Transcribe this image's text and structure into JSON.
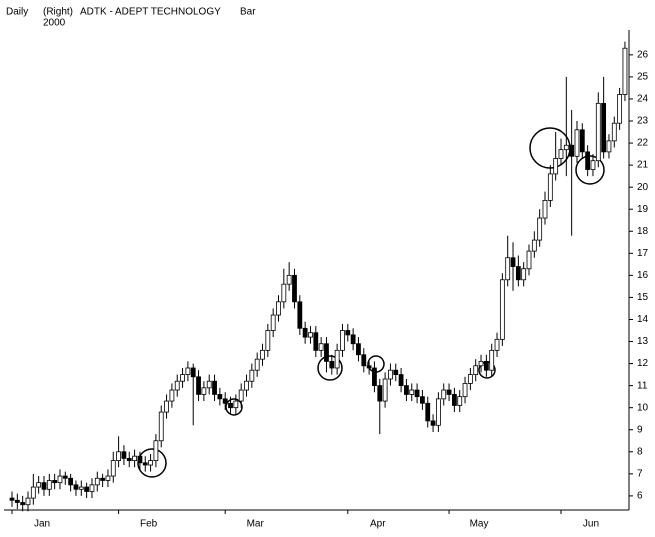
{
  "header": {
    "period": "Daily",
    "axis_side": "(Right)",
    "year": "2000",
    "symbol": "ADTK - ADEPT TECHNOLOGY",
    "style": "Bar"
  },
  "chart_data": {
    "type": "candlestick",
    "ylim": [
      5.36,
      26.9
    ],
    "yticks": [
      6,
      7,
      8,
      9,
      10,
      11,
      12,
      13,
      14,
      15,
      16,
      17,
      18,
      19,
      20,
      21,
      22,
      23,
      24,
      25,
      26
    ],
    "up_color": "#ffffff",
    "down_color": "#000000",
    "categories": [
      "Jan",
      null,
      null,
      null,
      null,
      null,
      null,
      null,
      null,
      null,
      null,
      null,
      null,
      null,
      null,
      null,
      null,
      null,
      null,
      null,
      "Feb",
      null,
      null,
      null,
      null,
      null,
      null,
      null,
      null,
      null,
      null,
      null,
      null,
      null,
      null,
      null,
      null,
      null,
      null,
      null,
      "Mar",
      null,
      null,
      null,
      null,
      null,
      null,
      null,
      null,
      null,
      null,
      null,
      null,
      null,
      null,
      null,
      null,
      null,
      null,
      null,
      null,
      null,
      null,
      "Apr",
      null,
      null,
      null,
      null,
      null,
      null,
      null,
      null,
      null,
      null,
      null,
      null,
      null,
      null,
      null,
      null,
      null,
      null,
      "May",
      null,
      null,
      null,
      null,
      null,
      null,
      null,
      null,
      null,
      null,
      null,
      null,
      null,
      null,
      null,
      null,
      null,
      null,
      null,
      null,
      "Jun",
      null,
      null,
      null,
      null,
      null,
      null,
      null,
      null,
      null,
      null,
      null,
      null
    ],
    "ohlc": [
      [
        5.9,
        6.2,
        5.5,
        5.8
      ],
      [
        5.8,
        6.1,
        5.4,
        5.7
      ],
      [
        5.7,
        6.0,
        5.3,
        5.6
      ],
      [
        5.6,
        6.2,
        5.3,
        5.9
      ],
      [
        5.9,
        7.0,
        5.6,
        6.4
      ],
      [
        6.4,
        6.9,
        6.1,
        6.6
      ],
      [
        6.6,
        6.9,
        6.0,
        6.3
      ],
      [
        6.3,
        7.0,
        6.0,
        6.7
      ],
      [
        6.7,
        7.0,
        6.3,
        6.6
      ],
      [
        6.6,
        7.2,
        6.3,
        6.9
      ],
      [
        6.9,
        7.1,
        6.5,
        6.8
      ],
      [
        6.8,
        7.0,
        6.2,
        6.5
      ],
      [
        6.5,
        6.7,
        6.0,
        6.3
      ],
      [
        6.3,
        6.7,
        6.0,
        6.4
      ],
      [
        6.4,
        6.6,
        5.9,
        6.2
      ],
      [
        6.2,
        6.8,
        5.9,
        6.5
      ],
      [
        6.5,
        7.1,
        6.2,
        6.8
      ],
      [
        6.8,
        7.0,
        6.4,
        6.7
      ],
      [
        6.7,
        7.2,
        6.4,
        6.9
      ],
      [
        6.9,
        8.0,
        6.6,
        7.6
      ],
      [
        7.6,
        8.7,
        7.3,
        8.0
      ],
      [
        8.0,
        8.3,
        7.4,
        7.7
      ],
      [
        7.7,
        8.0,
        7.3,
        7.6
      ],
      [
        7.6,
        8.1,
        7.3,
        7.8
      ],
      [
        7.8,
        8.0,
        7.2,
        7.5
      ],
      [
        7.5,
        7.8,
        7.1,
        7.4
      ],
      [
        7.4,
        7.9,
        7.1,
        7.6
      ],
      [
        7.6,
        8.8,
        7.3,
        8.5
      ],
      [
        8.5,
        10.1,
        8.2,
        9.8
      ],
      [
        9.8,
        10.6,
        9.5,
        10.3
      ],
      [
        10.3,
        11.1,
        10.0,
        10.8
      ],
      [
        10.8,
        11.5,
        10.5,
        11.2
      ],
      [
        11.2,
        11.8,
        10.9,
        11.5
      ],
      [
        11.5,
        12.1,
        11.2,
        11.8
      ],
      [
        11.8,
        12.0,
        9.2,
        11.4
      ],
      [
        11.4,
        11.7,
        10.3,
        10.6
      ],
      [
        10.6,
        11.2,
        10.3,
        10.9
      ],
      [
        10.9,
        11.5,
        10.6,
        11.2
      ],
      [
        11.2,
        11.5,
        10.3,
        10.6
      ],
      [
        10.6,
        10.9,
        10.1,
        10.4
      ],
      [
        10.4,
        10.7,
        9.9,
        10.2
      ],
      [
        10.2,
        10.5,
        9.7,
        10.0
      ],
      [
        10.0,
        10.6,
        9.7,
        10.3
      ],
      [
        10.3,
        11.1,
        10.0,
        10.8
      ],
      [
        10.8,
        11.5,
        10.5,
        11.2
      ],
      [
        11.2,
        12.0,
        10.9,
        11.7
      ],
      [
        11.7,
        12.5,
        11.4,
        12.2
      ],
      [
        12.2,
        12.9,
        11.9,
        12.6
      ],
      [
        12.6,
        13.8,
        12.3,
        13.5
      ],
      [
        13.5,
        14.5,
        13.2,
        14.2
      ],
      [
        14.2,
        15.1,
        13.9,
        14.8
      ],
      [
        14.8,
        16.3,
        14.5,
        15.6
      ],
      [
        15.6,
        16.6,
        15.3,
        16.0
      ],
      [
        16.0,
        16.3,
        14.5,
        14.8
      ],
      [
        14.8,
        15.1,
        13.3,
        13.6
      ],
      [
        13.6,
        13.9,
        12.9,
        13.2
      ],
      [
        13.2,
        13.7,
        12.9,
        13.4
      ],
      [
        13.4,
        13.7,
        12.3,
        12.6
      ],
      [
        12.6,
        13.2,
        12.3,
        12.9
      ],
      [
        12.9,
        13.2,
        11.6,
        12.1
      ],
      [
        12.1,
        12.4,
        11.5,
        11.8
      ],
      [
        11.8,
        12.9,
        11.5,
        12.6
      ],
      [
        12.6,
        13.8,
        12.3,
        13.5
      ],
      [
        13.5,
        13.8,
        13.0,
        13.3
      ],
      [
        13.3,
        13.6,
        12.6,
        12.9
      ],
      [
        12.9,
        13.2,
        12.1,
        12.4
      ],
      [
        12.4,
        12.7,
        11.6,
        11.9
      ],
      [
        11.9,
        12.1,
        11.5,
        11.8
      ],
      [
        11.8,
        12.1,
        10.7,
        11.0
      ],
      [
        11.0,
        11.3,
        8.8,
        10.3
      ],
      [
        10.3,
        11.6,
        10.0,
        11.3
      ],
      [
        11.3,
        12.0,
        11.0,
        11.7
      ],
      [
        11.7,
        12.0,
        11.2,
        11.5
      ],
      [
        11.5,
        11.8,
        10.7,
        11.0
      ],
      [
        11.0,
        11.3,
        10.3,
        10.6
      ],
      [
        10.6,
        11.1,
        10.3,
        10.8
      ],
      [
        10.8,
        11.1,
        10.2,
        10.5
      ],
      [
        10.5,
        10.8,
        9.9,
        10.2
      ],
      [
        10.2,
        10.5,
        9.1,
        9.4
      ],
      [
        9.4,
        9.7,
        8.9,
        9.2
      ],
      [
        9.2,
        10.7,
        8.9,
        10.4
      ],
      [
        10.4,
        11.1,
        10.1,
        10.8
      ],
      [
        10.8,
        11.1,
        10.3,
        10.6
      ],
      [
        10.6,
        10.9,
        9.8,
        10.1
      ],
      [
        10.1,
        10.8,
        9.8,
        10.5
      ],
      [
        10.5,
        11.4,
        10.2,
        11.1
      ],
      [
        11.1,
        11.8,
        10.8,
        11.5
      ],
      [
        11.5,
        12.2,
        11.2,
        11.9
      ],
      [
        11.9,
        12.4,
        11.6,
        12.1
      ],
      [
        12.1,
        12.4,
        11.4,
        11.7
      ],
      [
        11.7,
        12.9,
        11.4,
        12.6
      ],
      [
        12.6,
        13.4,
        12.3,
        13.1
      ],
      [
        13.1,
        16.1,
        12.8,
        15.8
      ],
      [
        15.8,
        17.8,
        15.5,
        16.8
      ],
      [
        16.8,
        17.5,
        15.3,
        16.4
      ],
      [
        16.4,
        16.9,
        15.5,
        15.8
      ],
      [
        15.8,
        16.6,
        15.5,
        16.3
      ],
      [
        16.3,
        17.4,
        16.0,
        17.1
      ],
      [
        17.1,
        18.0,
        16.8,
        17.6
      ],
      [
        17.6,
        19.0,
        17.3,
        18.6
      ],
      [
        18.6,
        19.8,
        18.3,
        19.4
      ],
      [
        19.4,
        21.0,
        19.1,
        20.6
      ],
      [
        20.6,
        22.5,
        20.3,
        21.3
      ],
      [
        21.3,
        22.2,
        21.0,
        21.7
      ],
      [
        21.7,
        25.0,
        20.5,
        21.9
      ],
      [
        21.9,
        23.5,
        17.8,
        21.4
      ],
      [
        21.4,
        23.0,
        21.1,
        22.6
      ],
      [
        22.6,
        22.9,
        21.3,
        21.6
      ],
      [
        21.6,
        21.9,
        20.5,
        20.8
      ],
      [
        20.8,
        21.5,
        20.5,
        21.2
      ],
      [
        21.2,
        24.3,
        20.9,
        23.8
      ],
      [
        23.8,
        25.0,
        21.3,
        21.6
      ],
      [
        21.6,
        22.4,
        21.3,
        22.1
      ],
      [
        22.1,
        23.2,
        21.8,
        22.9
      ],
      [
        22.9,
        24.5,
        22.6,
        24.2
      ],
      [
        24.2,
        26.6,
        23.9,
        26.3
      ]
    ]
  }
}
